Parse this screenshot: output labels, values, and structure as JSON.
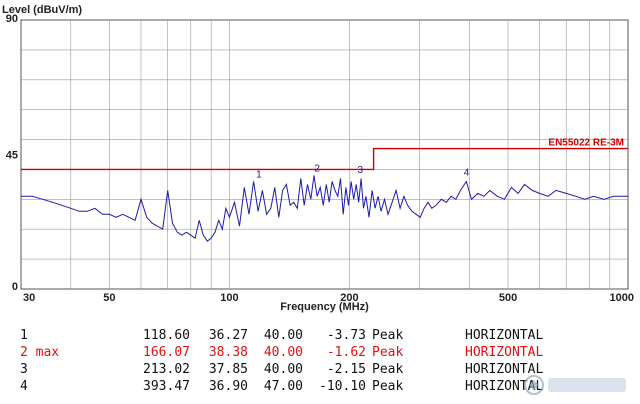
{
  "chart_data": {
    "type": "line",
    "ylabel": "Level (dBuV/m)",
    "xlabel": "Frequency (MHz)",
    "xscale": "log",
    "xlim": [
      30,
      1000
    ],
    "ylim": [
      0,
      90
    ],
    "x_ticks": [
      30,
      50,
      100,
      200,
      500,
      1000
    ],
    "y_ticks": [
      0,
      45,
      90
    ],
    "grid": true,
    "series": [
      {
        "color": "#1c1ca8",
        "x": [
          30,
          32,
          34,
          36,
          38,
          40,
          42,
          44,
          46,
          48,
          50,
          52,
          54,
          56,
          58,
          60,
          62,
          64,
          66,
          68,
          70,
          72,
          74,
          76,
          78,
          80,
          82,
          84,
          86,
          88,
          90,
          92,
          94,
          96,
          98,
          100,
          103,
          106,
          109,
          112,
          115,
          118,
          121,
          124,
          127,
          130,
          133,
          136,
          139,
          142,
          145,
          148,
          151,
          154,
          157,
          160,
          163,
          166,
          169,
          172,
          175,
          178,
          181,
          184,
          187,
          190,
          193,
          196,
          199,
          202,
          205,
          208,
          211,
          214,
          217,
          220,
          224,
          228,
          232,
          236,
          240,
          245,
          250,
          256,
          262,
          268,
          274,
          280,
          287,
          294,
          301,
          308,
          315,
          322,
          330,
          340,
          350,
          360,
          370,
          380,
          393,
          405,
          420,
          435,
          450,
          470,
          490,
          510,
          530,
          550,
          575,
          600,
          630,
          660,
          700,
          740,
          780,
          820,
          870,
          920,
          960,
          1000
        ],
        "y": [
          31,
          31,
          30,
          29,
          28,
          27,
          26,
          26,
          27,
          25,
          25,
          24,
          25,
          24,
          23,
          30,
          24,
          22,
          21,
          20,
          33,
          22,
          19,
          18,
          19,
          18,
          17,
          23,
          18,
          16,
          17,
          19,
          23,
          20,
          27,
          24,
          29,
          21,
          34,
          25,
          36,
          26,
          33,
          25,
          27,
          34,
          24,
          33,
          35,
          28,
          29,
          27,
          37,
          28,
          35,
          30,
          38,
          31,
          34,
          28,
          35,
          29,
          36,
          33,
          31,
          37,
          25,
          34,
          28,
          36,
          30,
          35,
          29,
          37,
          27,
          31,
          24,
          33,
          27,
          31,
          26,
          30,
          25,
          29,
          33,
          27,
          31,
          28,
          26,
          25,
          24,
          27,
          29,
          27,
          28,
          30,
          29,
          31,
          30,
          33,
          36,
          30,
          32,
          31,
          33,
          31,
          30,
          34,
          32,
          35,
          33,
          32,
          31,
          33,
          32,
          31,
          30,
          31,
          30,
          31,
          31,
          31
        ]
      }
    ],
    "limit_line": {
      "label": "EN55022 RE-3M",
      "color": "#d00000",
      "segments": [
        {
          "x_start": 30,
          "x_end": 230,
          "level": 40
        },
        {
          "x_start": 230,
          "x_end": 1000,
          "level": 47
        }
      ]
    },
    "markers": [
      {
        "label": "1",
        "freq": 118.6,
        "level": 36.27
      },
      {
        "label": "2",
        "freq": 166.07,
        "level": 38.38
      },
      {
        "label": "3",
        "freq": 213.02,
        "level": 37.85
      },
      {
        "label": "4",
        "freq": 393.47,
        "level": 36.9
      }
    ]
  },
  "marker_table": [
    {
      "id": "1",
      "freq": "118.60",
      "level": "36.27",
      "limit": "40.00",
      "margin": "-3.73",
      "detector": "Peak",
      "polarization": "HORIZONTAL",
      "highlight": false
    },
    {
      "id": "2 max",
      "freq": "166.07",
      "level": "38.38",
      "limit": "40.00",
      "margin": "-1.62",
      "detector": "Peak",
      "polarization": "HORIZONTAL",
      "highlight": true
    },
    {
      "id": "3",
      "freq": "213.02",
      "level": "37.85",
      "limit": "40.00",
      "margin": "-2.15",
      "detector": "Peak",
      "polarization": "HORIZONTAL",
      "highlight": false
    },
    {
      "id": "4",
      "freq": "393.47",
      "level": "36.90",
      "limit": "47.00",
      "margin": "-10.10",
      "detector": "Peak",
      "polarization": "HORIZONTAL",
      "highlight": false
    }
  ],
  "colors": {
    "trace": "#1c1ca8",
    "limit": "#d00000",
    "highlight_row": "#e01010",
    "grid": "#9a9a9a"
  }
}
